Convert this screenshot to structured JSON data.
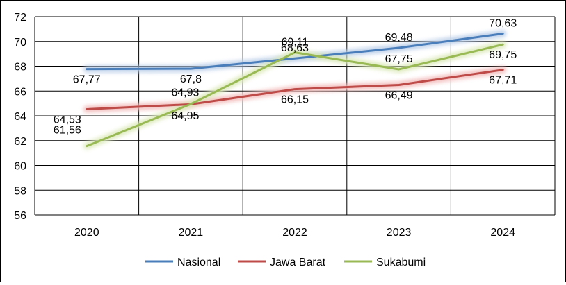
{
  "chart_data": {
    "type": "line",
    "title": "",
    "xlabel": "",
    "ylabel": "",
    "categories": [
      "2020",
      "2021",
      "2022",
      "2023",
      "2024"
    ],
    "ylim": [
      56,
      72
    ],
    "yticks": [
      56,
      58,
      60,
      62,
      64,
      66,
      68,
      70,
      72
    ],
    "grid": true,
    "legend_position": "bottom",
    "series": [
      {
        "name": "Nasional",
        "color": "#4a7ebb",
        "glow": "#b9cde8",
        "values": [
          67.77,
          67.8,
          68.63,
          69.48,
          70.63
        ],
        "labels": [
          "67,77",
          "67,8",
          "68,63",
          "69,48",
          "70,63"
        ]
      },
      {
        "name": "Jawa Barat",
        "color": "#be4b48",
        "glow": "#f2bcbb",
        "values": [
          64.53,
          64.93,
          66.15,
          66.49,
          67.71
        ],
        "labels": [
          "64,53",
          "64,93",
          "66,15",
          "66,49",
          "67,71"
        ]
      },
      {
        "name": "Sukabumi",
        "color": "#98b954",
        "glow": "#dbe9b8",
        "values": [
          61.56,
          64.95,
          69.11,
          67.75,
          69.75
        ],
        "labels": [
          "61,56",
          "64,95",
          "69,11",
          "67,75",
          "69,75"
        ]
      }
    ]
  }
}
